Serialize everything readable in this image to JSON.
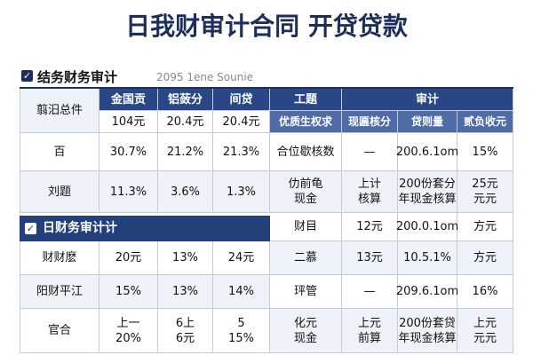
{
  "title": "日我财审计合同 开贷贷款",
  "section1": {
    "label": "结务财务审计",
    "source": "2095 1ene Sounie"
  },
  "left_table": {
    "corner": "翦汨总件",
    "headers": [
      "金国贡",
      "铝蔹分",
      "间贷"
    ],
    "header_values": [
      "104元",
      "20.4元",
      "20.4元"
    ],
    "rows": [
      [
        "百",
        "30.7%",
        "21.2%",
        "21.3%"
      ],
      [
        "刘题",
        "11.3%",
        "3.6%",
        "1.3%"
      ],
      [
        "财财麽",
        "20元",
        "13%",
        "24元"
      ],
      [
        "阳财平江",
        "15%",
        "13%",
        "14%"
      ],
      [
        "官合",
        "上一\n20%",
        "6上\n6元",
        "5\n15%"
      ]
    ]
  },
  "section2": "日财务审计计",
  "right_table": {
    "headers": [
      "工题",
      "审计"
    ],
    "subheaders": [
      "优质生权求",
      "现匾核分",
      "贷则量",
      "贰负收元"
    ],
    "rows": [
      [
        "合位歇核数",
        "—",
        "200.6.1om",
        "15%"
      ],
      [
        "仂前龟\n现金",
        "上计\n核算",
        "200份套分\n年现金核算",
        "25元\n元元"
      ],
      [
        "财目",
        "12元",
        "200.0.1om",
        "方元"
      ],
      [
        "二慕",
        "13元",
        "10.5.1%",
        "方元"
      ],
      [
        "玶管",
        "—",
        "209.6.1om",
        "16%"
      ],
      [
        "化元\n现金",
        "上元\n前算",
        "200份套贷\n年现金核算",
        "上元\n元元"
      ]
    ]
  }
}
